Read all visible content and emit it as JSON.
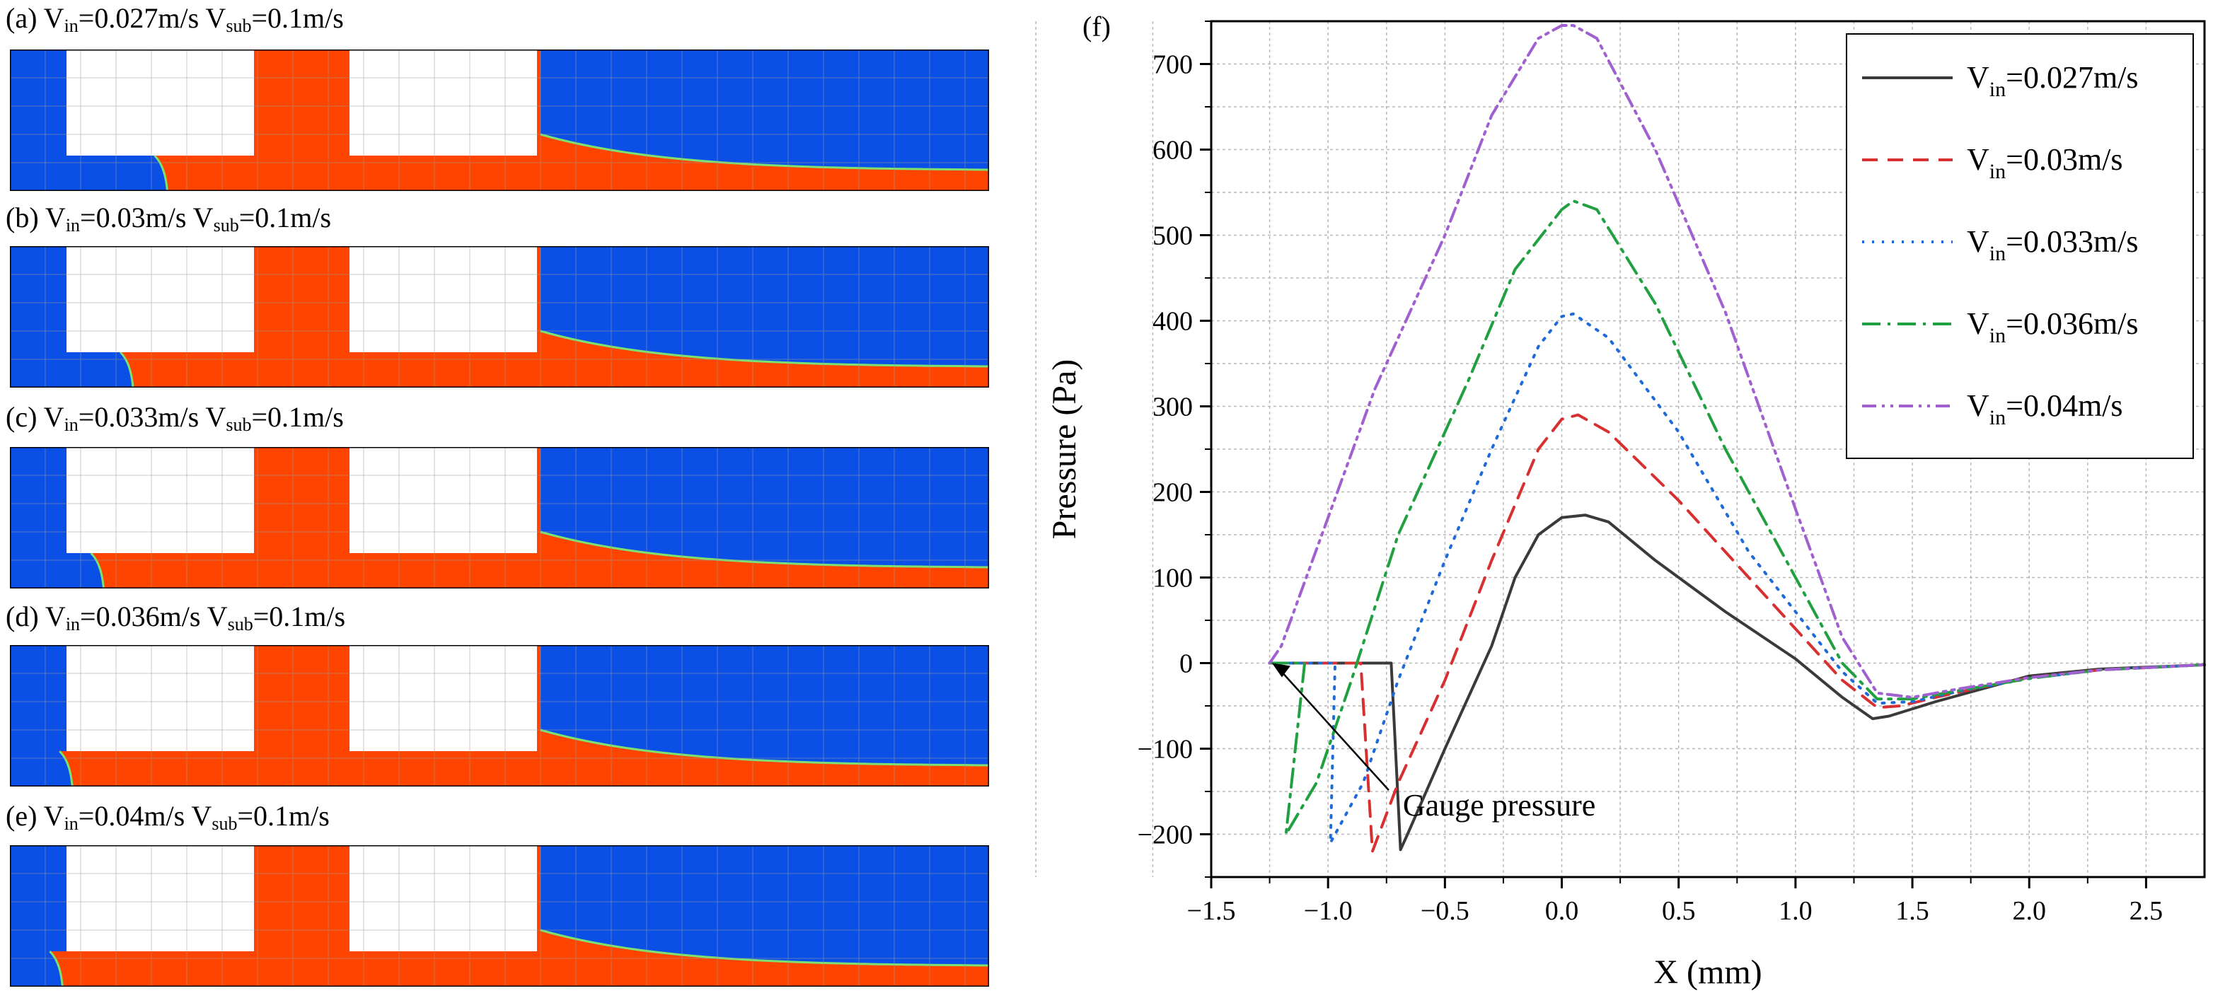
{
  "panels": [
    {
      "id": "a",
      "prefix": "(a) V",
      "in_sub": "in",
      "vin": "=0.027m/s",
      "vsub_prefix": " V",
      "sub_sub": "sub",
      "vsub": "=0.1m/s",
      "interface": 0.155
    },
    {
      "id": "b",
      "prefix": "(b) V",
      "in_sub": "in",
      "vin": "=0.03m/s",
      "vsub_prefix": " V",
      "sub_sub": "sub",
      "vsub": "=0.1m/s",
      "interface": 0.12
    },
    {
      "id": "c",
      "prefix": "(c) V",
      "in_sub": "in",
      "vin": "=0.033m/s",
      "vsub_prefix": " V",
      "sub_sub": "sub",
      "vsub": "=0.1m/s",
      "interface": 0.09
    },
    {
      "id": "d",
      "prefix": "(d) V",
      "in_sub": "in",
      "vin": "=0.036m/s",
      "vsub_prefix": " V",
      "sub_sub": "sub",
      "vsub": "=0.1m/s",
      "interface": 0.058
    },
    {
      "id": "e",
      "prefix": "(e) V",
      "in_sub": "in",
      "vin": "=0.04m/s",
      "vsub_prefix": " V",
      "sub_sub": "sub",
      "vsub": "=0.1m/s",
      "interface": 0.048
    }
  ],
  "colors": {
    "water": "#0a50e6",
    "oil": "#ff4400",
    "wall": "#ffffff",
    "grid": "#9a9a9a",
    "interface": "#7ee070"
  },
  "chart_data": {
    "type": "line",
    "panel_label": "(f)",
    "xlabel": "X (mm)",
    "ylabel": "Pressure (Pa)",
    "xlim": [
      -1.5,
      2.75
    ],
    "ylim": [
      -250,
      750
    ],
    "xticks": [
      -1.5,
      -1.0,
      -0.5,
      0.0,
      0.5,
      1.0,
      1.5,
      2.0,
      2.5
    ],
    "xtick_labels": [
      "−1.5",
      "−1.0",
      "−0.5",
      "0.0",
      "0.5",
      "1.0",
      "1.5",
      "2.0",
      "2.5"
    ],
    "yticks": [
      -200,
      -100,
      0,
      100,
      200,
      300,
      400,
      500,
      600,
      700
    ],
    "ytick_labels": [
      "−200",
      "−100",
      "0",
      "100",
      "200",
      "300",
      "400",
      "500",
      "600",
      "700"
    ],
    "grid": true,
    "legend_position": "top-right",
    "annotation": {
      "text": "Gauge pressure",
      "arrow_to": [
        -1.24,
        0
      ],
      "text_at": [
        -0.68,
        -165
      ]
    },
    "series": [
      {
        "name": "V",
        "sub": "in",
        "suffix": "=0.027m/s",
        "color": "#3a3a3a",
        "dash": "none",
        "points": [
          [
            -1.25,
            0
          ],
          [
            -0.73,
            0
          ],
          [
            -0.69,
            -218
          ],
          [
            -0.66,
            -200
          ],
          [
            -0.5,
            -100
          ],
          [
            -0.3,
            20
          ],
          [
            -0.2,
            100
          ],
          [
            -0.1,
            150
          ],
          [
            0,
            170
          ],
          [
            0.1,
            173
          ],
          [
            0.2,
            165
          ],
          [
            0.4,
            120
          ],
          [
            0.7,
            60
          ],
          [
            1.0,
            5
          ],
          [
            1.2,
            -40
          ],
          [
            1.33,
            -65
          ],
          [
            1.4,
            -62
          ],
          [
            1.6,
            -45
          ],
          [
            1.8,
            -30
          ],
          [
            2.0,
            -15
          ],
          [
            2.3,
            -7
          ],
          [
            2.75,
            -2
          ]
        ]
      },
      {
        "name": "V",
        "sub": "in",
        "suffix": "=0.03m/s",
        "color": "#d83030",
        "dash": "22,14",
        "points": [
          [
            -1.25,
            0
          ],
          [
            -0.86,
            0
          ],
          [
            -0.81,
            -220
          ],
          [
            -0.7,
            -140
          ],
          [
            -0.5,
            -20
          ],
          [
            -0.3,
            120
          ],
          [
            -0.1,
            250
          ],
          [
            0,
            285
          ],
          [
            0.07,
            290
          ],
          [
            0.2,
            270
          ],
          [
            0.5,
            190
          ],
          [
            0.8,
            100
          ],
          [
            1.0,
            40
          ],
          [
            1.2,
            -20
          ],
          [
            1.35,
            -52
          ],
          [
            1.45,
            -50
          ],
          [
            1.6,
            -40
          ],
          [
            1.8,
            -28
          ],
          [
            2.0,
            -17
          ],
          [
            2.3,
            -8
          ],
          [
            2.75,
            -2
          ]
        ]
      },
      {
        "name": "V",
        "sub": "in",
        "suffix": "=0.033m/s",
        "color": "#1e6ad8",
        "dash": "3,11",
        "points": [
          [
            -1.25,
            0
          ],
          [
            -0.97,
            0
          ],
          [
            -0.99,
            -210
          ],
          [
            -0.85,
            -140
          ],
          [
            -0.7,
            -20
          ],
          [
            -0.5,
            120
          ],
          [
            -0.3,
            250
          ],
          [
            -0.1,
            370
          ],
          [
            0,
            405
          ],
          [
            0.05,
            408
          ],
          [
            0.2,
            380
          ],
          [
            0.5,
            270
          ],
          [
            0.8,
            130
          ],
          [
            1.0,
            60
          ],
          [
            1.2,
            -10
          ],
          [
            1.35,
            -47
          ],
          [
            1.5,
            -45
          ],
          [
            1.7,
            -33
          ],
          [
            2.0,
            -18
          ],
          [
            2.3,
            -8
          ],
          [
            2.75,
            -2
          ]
        ]
      },
      {
        "name": "V",
        "sub": "in",
        "suffix": "=0.036m/s",
        "color": "#20a040",
        "dash": "26,10,4,10",
        "points": [
          [
            -1.25,
            0
          ],
          [
            -1.1,
            0
          ],
          [
            -1.18,
            -200
          ],
          [
            -1.05,
            -140
          ],
          [
            -0.9,
            -20
          ],
          [
            -0.7,
            150
          ],
          [
            -0.4,
            330
          ],
          [
            -0.2,
            460
          ],
          [
            0,
            530
          ],
          [
            0.05,
            540
          ],
          [
            0.15,
            530
          ],
          [
            0.4,
            420
          ],
          [
            0.7,
            250
          ],
          [
            1.0,
            100
          ],
          [
            1.2,
            0
          ],
          [
            1.35,
            -42
          ],
          [
            1.5,
            -42
          ],
          [
            1.7,
            -32
          ],
          [
            2.0,
            -18
          ],
          [
            2.3,
            -8
          ],
          [
            2.75,
            -2
          ]
        ]
      },
      {
        "name": "V",
        "sub": "in",
        "suffix": "=0.04m/s",
        "color": "#a060d0",
        "dash": "20,8,4,8,4,8",
        "points": [
          [
            -1.25,
            0
          ],
          [
            -1.2,
            20
          ],
          [
            -1.0,
            170
          ],
          [
            -0.8,
            320
          ],
          [
            -0.5,
            500
          ],
          [
            -0.3,
            640
          ],
          [
            -0.1,
            730
          ],
          [
            0,
            745
          ],
          [
            0.05,
            745
          ],
          [
            0.15,
            730
          ],
          [
            0.4,
            600
          ],
          [
            0.7,
            410
          ],
          [
            1.0,
            180
          ],
          [
            1.2,
            30
          ],
          [
            1.35,
            -35
          ],
          [
            1.5,
            -40
          ],
          [
            1.7,
            -30
          ],
          [
            2.0,
            -17
          ],
          [
            2.3,
            -8
          ],
          [
            2.75,
            -2
          ]
        ]
      }
    ]
  }
}
